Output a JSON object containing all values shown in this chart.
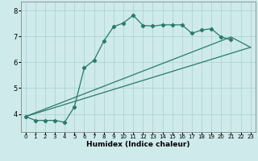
{
  "title": "",
  "xlabel": "Humidex (Indice chaleur)",
  "bg_color": "#ceeaea",
  "line_color": "#2a7a6a",
  "grid_color": "#aacfcf",
  "spine_color": "#888888",
  "xlim": [
    -0.5,
    23.5
  ],
  "ylim": [
    3.3,
    8.35
  ],
  "xticks": [
    0,
    1,
    2,
    3,
    4,
    5,
    6,
    7,
    8,
    9,
    10,
    11,
    12,
    13,
    14,
    15,
    16,
    17,
    18,
    19,
    20,
    21,
    22,
    23
  ],
  "yticks": [
    4,
    5,
    6,
    7,
    8
  ],
  "line1_x": [
    0,
    1,
    2,
    3,
    4,
    5,
    6,
    7,
    8,
    9,
    10,
    11,
    12,
    13,
    14,
    15,
    16,
    17,
    18,
    19,
    20,
    21
  ],
  "line1_y": [
    3.9,
    3.75,
    3.75,
    3.75,
    3.68,
    4.28,
    5.78,
    6.08,
    6.82,
    7.38,
    7.52,
    7.82,
    7.43,
    7.4,
    7.45,
    7.45,
    7.45,
    7.12,
    7.25,
    7.3,
    6.98,
    6.88
  ],
  "line2_x": [
    0,
    23
  ],
  "line2_y": [
    3.9,
    6.58
  ],
  "line3_x": [
    0,
    21,
    23
  ],
  "line3_y": [
    3.9,
    6.98,
    6.58
  ]
}
